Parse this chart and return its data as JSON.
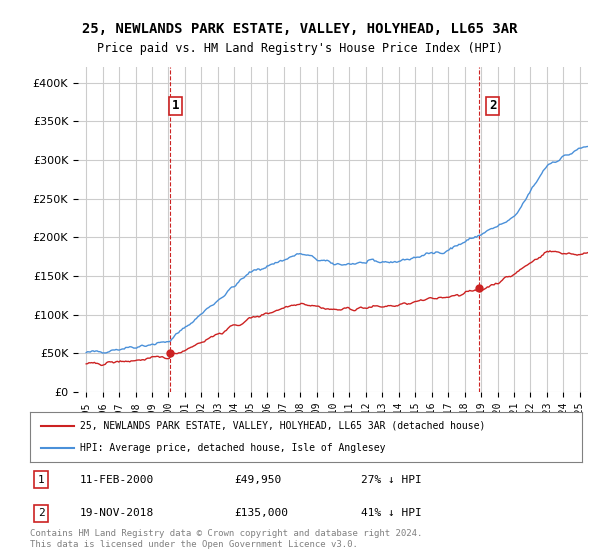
{
  "title": "25, NEWLANDS PARK ESTATE, VALLEY, HOLYHEAD, LL65 3AR",
  "subtitle": "Price paid vs. HM Land Registry's House Price Index (HPI)",
  "ylabel_values": [
    "£0",
    "£50K",
    "£100K",
    "£150K",
    "£200K",
    "£250K",
    "£300K",
    "£350K",
    "£400K"
  ],
  "yticks": [
    0,
    50000,
    100000,
    150000,
    200000,
    250000,
    300000,
    350000,
    400000
  ],
  "ylim": [
    0,
    420000
  ],
  "xlim_start": 1994.5,
  "xlim_end": 2025.5,
  "legend_line1": "25, NEWLANDS PARK ESTATE, VALLEY, HOLYHEAD, LL65 3AR (detached house)",
  "legend_line2": "HPI: Average price, detached house, Isle of Anglesey",
  "sale1_year": 2000.12,
  "sale1_price": 49950,
  "sale1_label": "1",
  "sale2_year": 2018.9,
  "sale2_price": 135000,
  "sale2_label": "2",
  "annotation1": "1    11-FEB-2000         £49,950          27% ↓ HPI",
  "annotation2": "2    19-NOV-2018         £135,000        41% ↓ HPI",
  "copyright": "Contains HM Land Registry data © Crown copyright and database right 2024.\nThis data is licensed under the Open Government Licence v3.0.",
  "hpi_color": "#4a90d9",
  "price_color": "#cc2222",
  "dashed_line_color": "#cc2222",
  "background_color": "#ffffff",
  "grid_color": "#cccccc"
}
